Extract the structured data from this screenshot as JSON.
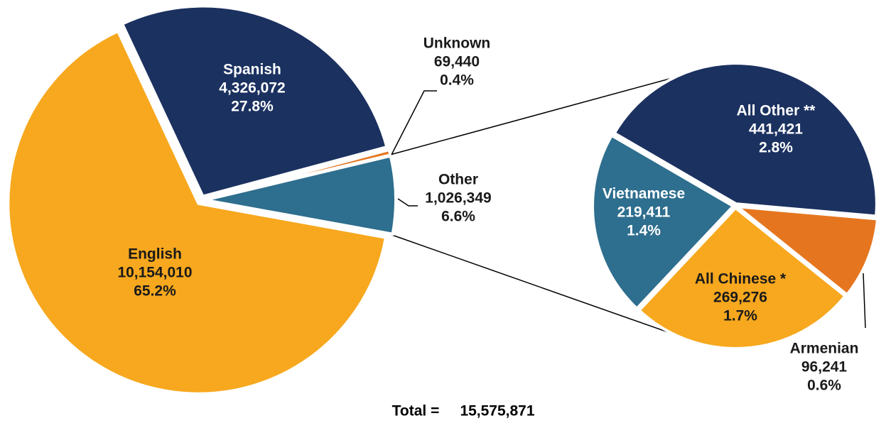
{
  "chart_data": {
    "type": "pie_of_pie",
    "main": {
      "categories": [
        "English",
        "Spanish",
        "Unknown",
        "Other"
      ],
      "values": [
        10154010,
        4326072,
        69440,
        1026349
      ],
      "value_labels": [
        "10,154,010",
        "4,326,072",
        "69,440",
        "1,026,349"
      ],
      "percent_labels": [
        "65.2%",
        "27.8%",
        "0.4%",
        "6.6%"
      ],
      "colors": [
        "#F7A81E",
        "#1B3160",
        "#E5761F",
        "#2E6E8E"
      ]
    },
    "sub": {
      "categories": [
        "All Other **",
        "Armenian",
        "All Chinese *",
        "Vietnamese"
      ],
      "values": [
        441421,
        96241,
        269276,
        219411
      ],
      "value_labels": [
        "441,421",
        "96,241",
        "269,276",
        "219,411"
      ],
      "percent_labels": [
        "2.8%",
        "0.6%",
        "1.7%",
        "1.4%"
      ],
      "colors": [
        "#1B3160",
        "#E5761F",
        "#F7A81E",
        "#2E6E8E"
      ]
    },
    "total": {
      "label": "Total =",
      "value": 15575871,
      "value_label": "15,575,871"
    }
  }
}
